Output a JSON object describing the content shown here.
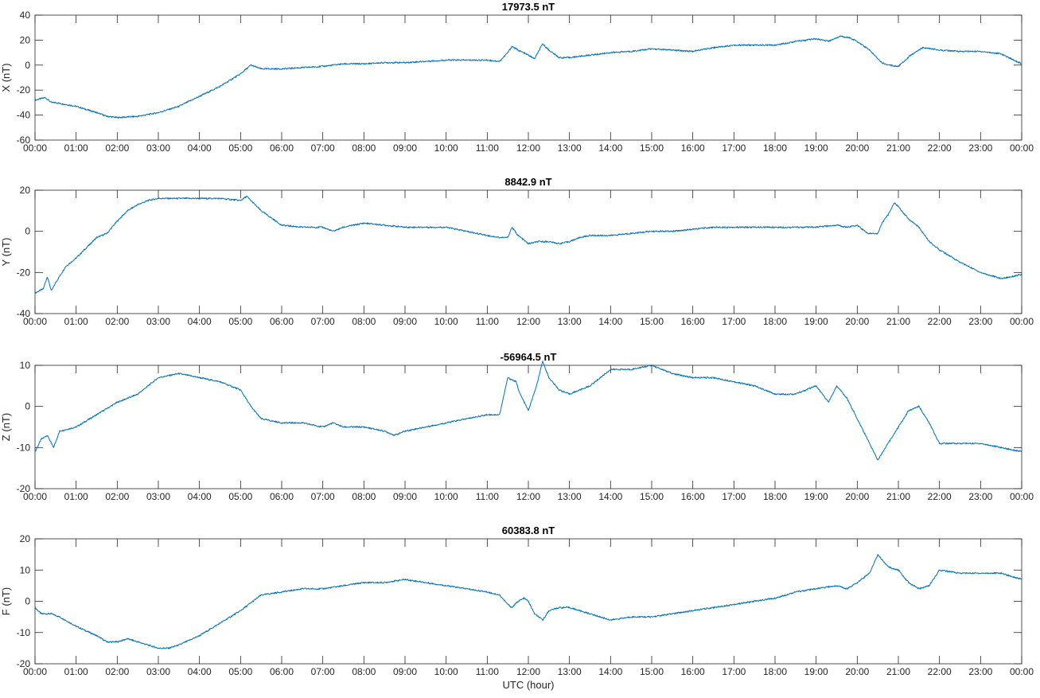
{
  "chart_data": [
    {
      "type": "line",
      "title": "17973.5 nT",
      "xlabel": "",
      "ylabel": "X (nT)",
      "ylim": [
        -60,
        40
      ],
      "yticks": [
        "-60",
        "-40",
        "-20",
        "0",
        "20",
        "40"
      ],
      "xticks": [
        "00:00",
        "01:00",
        "02:00",
        "03:00",
        "04:00",
        "05:00",
        "06:00",
        "07:00",
        "08:00",
        "09:00",
        "10:00",
        "11:00",
        "12:00",
        "13:00",
        "14:00",
        "15:00",
        "16:00",
        "17:00",
        "18:00",
        "19:00",
        "20:00",
        "21:00",
        "22:00",
        "23:00",
        "00:00"
      ],
      "xlim": [
        0,
        24
      ],
      "grid": false,
      "color": "#0072BD",
      "series": [
        {
          "x": [
            0,
            0.25,
            0.4,
            0.5,
            1,
            1.5,
            1.75,
            2,
            2.5,
            3,
            3.5,
            4,
            4.5,
            5,
            5.25,
            5.5,
            6,
            6.5,
            7,
            7.5,
            8,
            8.5,
            9,
            9.5,
            10,
            10.5,
            11,
            11.3,
            11.5,
            11.6,
            11.75,
            12,
            12.15,
            12.35,
            12.5,
            12.75,
            13,
            13.5,
            14,
            14.5,
            15,
            15.5,
            16,
            16.5,
            17,
            17.5,
            18,
            18.5,
            19,
            19.3,
            19.5,
            19.6,
            19.8,
            20,
            20.3,
            20.6,
            20.75,
            21,
            21.3,
            21.6,
            22,
            22.5,
            23,
            23.5,
            24
          ],
          "y": [
            -28,
            -26,
            -30,
            -30,
            -33,
            -38,
            -41,
            -42,
            -41,
            -38,
            -33,
            -25,
            -17,
            -7,
            0,
            -3,
            -3,
            -2,
            -1,
            1,
            1,
            2,
            2,
            3,
            4,
            4,
            4,
            3,
            10,
            15,
            12,
            8,
            5,
            17,
            12,
            6,
            6,
            8,
            10,
            11,
            13,
            12,
            11,
            14,
            16,
            16,
            16,
            19,
            21,
            19,
            22,
            23,
            22,
            19,
            12,
            2,
            0,
            -1,
            8,
            14,
            12,
            11,
            11,
            9,
            1
          ]
        }
      ]
    },
    {
      "type": "line",
      "title": "8842.9 nT",
      "xlabel": "",
      "ylabel": "Y (nT)",
      "ylim": [
        -40,
        20
      ],
      "yticks": [
        "-40",
        "-20",
        "0",
        "20"
      ],
      "xticks": [
        "00:00",
        "01:00",
        "02:00",
        "03:00",
        "04:00",
        "05:00",
        "06:00",
        "07:00",
        "08:00",
        "09:00",
        "10:00",
        "11:00",
        "12:00",
        "13:00",
        "14:00",
        "15:00",
        "16:00",
        "17:00",
        "18:00",
        "19:00",
        "20:00",
        "21:00",
        "22:00",
        "23:00",
        "00:00"
      ],
      "xlim": [
        0,
        24
      ],
      "grid": false,
      "color": "#0072BD",
      "series": [
        {
          "x": [
            0,
            0.2,
            0.3,
            0.4,
            0.5,
            0.75,
            1,
            1.25,
            1.5,
            1.75,
            2,
            2.25,
            2.5,
            2.75,
            3,
            3.5,
            4,
            4.5,
            5,
            5.15,
            5.25,
            5.5,
            6,
            6.5,
            7,
            7.25,
            7.5,
            8,
            8.5,
            9,
            9.5,
            10,
            10.5,
            11,
            11.3,
            11.5,
            11.6,
            11.75,
            12,
            12.25,
            12.5,
            12.75,
            13,
            13.25,
            13.5,
            14,
            14.5,
            15,
            15.5,
            16,
            16.5,
            17,
            17.5,
            18,
            18.5,
            19,
            19.5,
            19.75,
            20,
            20.25,
            20.5,
            20.6,
            20.75,
            20.9,
            21,
            21.25,
            21.5,
            21.75,
            22,
            22.5,
            23,
            23.5,
            24
          ],
          "y": [
            -30,
            -28,
            -22,
            -29,
            -25,
            -17,
            -13,
            -8,
            -3,
            -1,
            5,
            10,
            13,
            15,
            16,
            16,
            16,
            16,
            15,
            17,
            15,
            10,
            3,
            2,
            2,
            0,
            2,
            4,
            3,
            2,
            2,
            2,
            0,
            -2,
            -3,
            -3,
            2,
            -2,
            -6,
            -5,
            -5,
            -6,
            -5,
            -3,
            -2,
            -2,
            -1,
            0,
            0,
            1,
            2,
            2,
            2,
            2,
            2,
            2,
            3,
            2,
            3,
            -1,
            -1,
            4,
            8,
            14,
            12,
            6,
            2,
            -5,
            -9,
            -15,
            -20,
            -23,
            -21
          ]
        }
      ]
    },
    {
      "type": "line",
      "title": "-56964.5 nT",
      "xlabel": "",
      "ylabel": "Z (nT)",
      "ylim": [
        -20,
        10
      ],
      "yticks": [
        "-20",
        "-10",
        "0",
        "10"
      ],
      "xticks": [
        "00:00",
        "01:00",
        "02:00",
        "03:00",
        "04:00",
        "05:00",
        "06:00",
        "07:00",
        "08:00",
        "09:00",
        "10:00",
        "11:00",
        "12:00",
        "13:00",
        "14:00",
        "15:00",
        "16:00",
        "17:00",
        "18:00",
        "19:00",
        "20:00",
        "21:00",
        "22:00",
        "23:00",
        "00:00"
      ],
      "xlim": [
        0,
        24
      ],
      "grid": false,
      "color": "#0072BD",
      "series": [
        {
          "x": [
            0,
            0.15,
            0.3,
            0.45,
            0.6,
            1,
            1.5,
            2,
            2.5,
            3,
            3.5,
            4,
            4.5,
            5,
            5.25,
            5.5,
            6,
            6.5,
            7,
            7.25,
            7.5,
            8,
            8.5,
            8.75,
            9,
            9.5,
            10,
            10.5,
            11,
            11.3,
            11.5,
            11.7,
            11.8,
            12,
            12.2,
            12.35,
            12.5,
            12.75,
            13,
            13.5,
            14,
            14.5,
            15,
            15.5,
            16,
            16.5,
            17,
            17.5,
            18,
            18.5,
            19,
            19.3,
            19.5,
            19.75,
            20,
            20.25,
            20.5,
            20.75,
            21,
            21.25,
            21.5,
            21.75,
            22,
            22.5,
            23,
            23.5,
            24
          ],
          "y": [
            -11,
            -8,
            -7,
            -10,
            -6,
            -5,
            -2,
            1,
            3,
            7,
            8,
            7,
            6,
            4,
            0,
            -3,
            -4,
            -4,
            -5,
            -4,
            -5,
            -5,
            -6,
            -7,
            -6,
            -5,
            -4,
            -3,
            -2,
            -2,
            7,
            6,
            3,
            -1,
            5,
            11,
            7,
            4,
            3,
            5,
            9,
            9,
            10,
            8,
            7,
            7,
            6,
            5,
            3,
            3,
            5,
            1,
            5,
            2,
            -3,
            -8,
            -13,
            -9,
            -5,
            -1,
            0,
            -4,
            -9,
            -9,
            -9,
            -10,
            -11
          ]
        }
      ]
    },
    {
      "type": "line",
      "title": "60383.8 nT",
      "xlabel": "UTC (hour)",
      "ylabel": "F (nT)",
      "ylim": [
        -20,
        20
      ],
      "yticks": [
        "-20",
        "-10",
        "0",
        "10",
        "20"
      ],
      "xticks": [
        "00:00",
        "01:00",
        "02:00",
        "03:00",
        "04:00",
        "05:00",
        "06:00",
        "07:00",
        "08:00",
        "09:00",
        "10:00",
        "11:00",
        "12:00",
        "13:00",
        "14:00",
        "15:00",
        "16:00",
        "17:00",
        "18:00",
        "19:00",
        "20:00",
        "21:00",
        "22:00",
        "23:00",
        "00:00"
      ],
      "xlim": [
        0,
        24
      ],
      "grid": false,
      "color": "#0072BD",
      "series": [
        {
          "x": [
            0,
            0.15,
            0.4,
            0.6,
            1,
            1.5,
            1.75,
            2,
            2.25,
            2.5,
            3,
            3.25,
            3.5,
            4,
            4.5,
            5,
            5.5,
            6,
            6.5,
            7,
            7.5,
            8,
            8.5,
            9,
            9.5,
            10,
            10.5,
            11,
            11.3,
            11.5,
            11.6,
            11.75,
            11.9,
            12,
            12.15,
            12.35,
            12.5,
            12.75,
            13,
            13.5,
            14,
            14.5,
            15,
            15.5,
            16,
            16.5,
            17,
            17.5,
            18,
            18.5,
            19,
            19.5,
            19.75,
            20,
            20.3,
            20.5,
            20.75,
            21,
            21.25,
            21.5,
            21.75,
            22,
            22.5,
            23,
            23.5,
            24
          ],
          "y": [
            -2,
            -4,
            -4,
            -5,
            -8,
            -11,
            -13,
            -13,
            -12,
            -13,
            -15,
            -15,
            -14,
            -11,
            -7,
            -3,
            2,
            3,
            4,
            4,
            5,
            6,
            6,
            7,
            6,
            5,
            4,
            3,
            2,
            -1,
            -2,
            0,
            1,
            0,
            -4,
            -6,
            -3,
            -2,
            -2,
            -4,
            -6,
            -5,
            -5,
            -4,
            -3,
            -2,
            -1,
            0,
            1,
            3,
            4,
            5,
            4,
            6,
            9,
            15,
            11,
            10,
            6,
            4,
            5,
            10,
            9,
            9,
            9,
            7
          ]
        }
      ]
    }
  ]
}
